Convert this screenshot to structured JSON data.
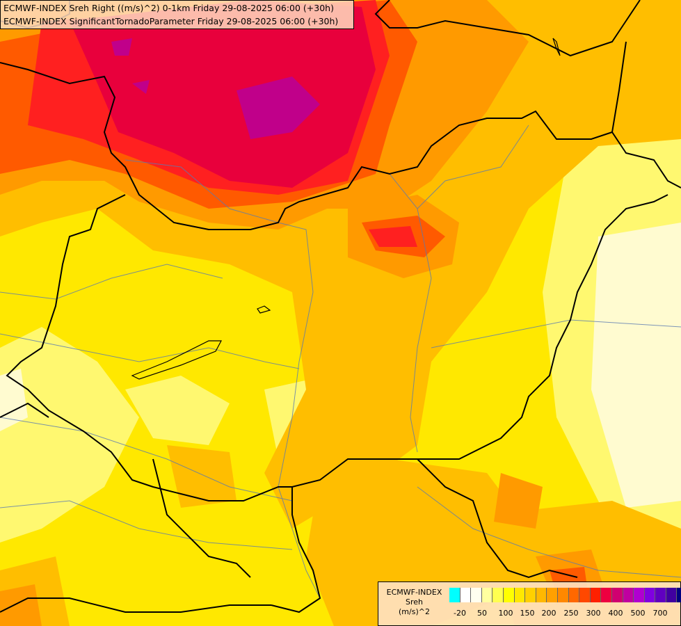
{
  "title": {
    "line1": "ECMWF-INDEX Sreh Right ((m/s)^2) 0-1km Friday 29-08-2025 06:00 (+30h)",
    "line2": "ECMWF-INDEX SignificantTornadoParameter Friday 29-08-2025 06:00 (+30h)"
  },
  "legend": {
    "line1": "ECMWF-INDEX",
    "line2": "Sreh",
    "line3": "(m/s)^2",
    "colors": [
      "#00ffff",
      "#ffffff",
      "#fffff0",
      "#ffffa0",
      "#ffff50",
      "#ffff00",
      "#ffe800",
      "#ffd000",
      "#ffb800",
      "#ffa000",
      "#ff8800",
      "#ff6800",
      "#ff4800",
      "#ff2000",
      "#ee0040",
      "#d00070",
      "#c000a0",
      "#b000d0",
      "#8000e0",
      "#6000c0",
      "#4000a0",
      "#000080"
    ],
    "ticks": [
      "-20",
      "50",
      "100",
      "150",
      "200",
      "250",
      "300",
      "400",
      "500",
      "700"
    ]
  },
  "colors": {
    "low_yellow": "#ffe800",
    "orange": "#ffb000",
    "dark_orange": "#ff8000",
    "red": "#ff2020",
    "crimson": "#e8003c",
    "magenta": "#c0008a",
    "pale": "#fff8c0"
  }
}
